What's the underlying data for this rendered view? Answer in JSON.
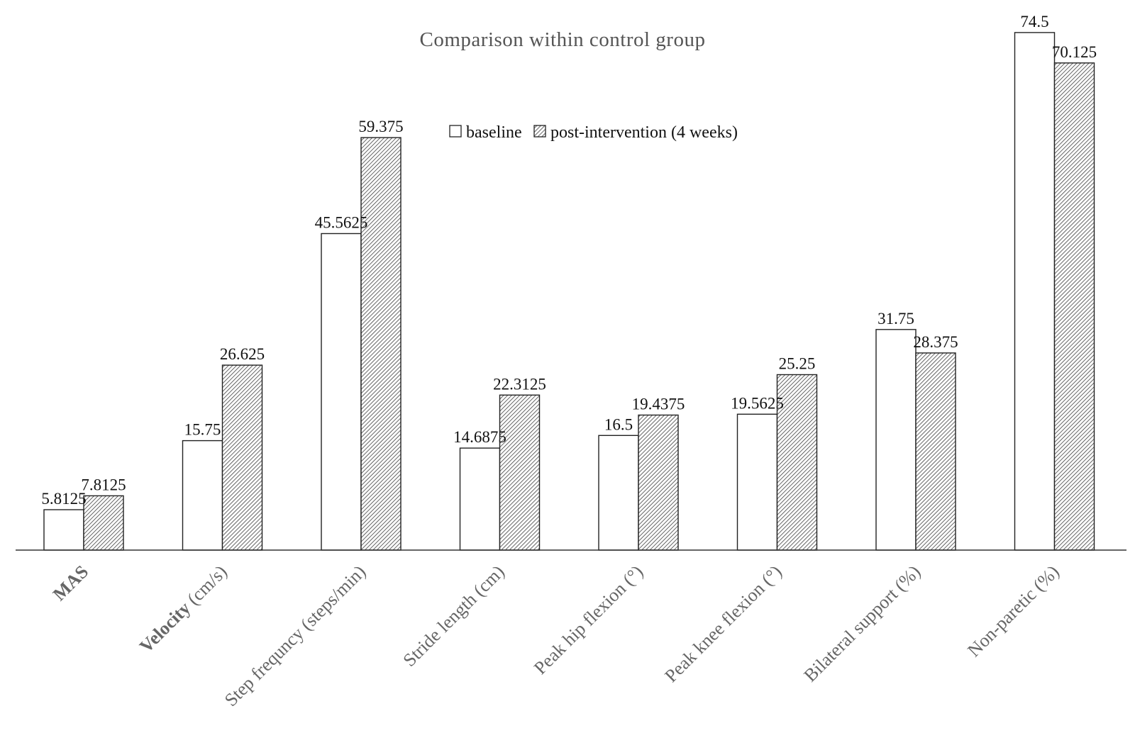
{
  "chart_data": {
    "type": "bar",
    "title": "Comparison within  control group",
    "xlabel": "",
    "ylabel": "",
    "ylim": [
      0,
      76
    ],
    "grid": false,
    "legend_position": "top-center",
    "categories": [
      "MAS",
      "Velocity (cm/s)",
      "Step frequncy (steps/min)",
      "Stride length (cm)",
      "Peak hip flexion (°)",
      "Peak knee flexion (°)",
      "Bilateral support (%)",
      "Non-paretic (%)"
    ],
    "category_label_parts": [
      {
        "bold": "MAS",
        "rest": ""
      },
      {
        "bold": "Velocity",
        "rest": " (cm/s)"
      },
      {
        "bold": "",
        "rest": "Step frequncy (steps/min)"
      },
      {
        "bold": "",
        "rest": "Stride length (cm)"
      },
      {
        "bold": "",
        "rest": "Peak hip flexion (°)"
      },
      {
        "bold": "",
        "rest": "Peak knee flexion (°)"
      },
      {
        "bold": "",
        "rest": "Bilateral support (%)"
      },
      {
        "bold": "",
        "rest": "Non-paretic (%)"
      }
    ],
    "series": [
      {
        "name": "baseline",
        "fill": "white",
        "values": [
          5.8125,
          15.75,
          45.5625,
          14.6875,
          16.5,
          19.5625,
          31.75,
          74.5
        ],
        "labels": [
          "5.8125",
          "15.75",
          "45.5625",
          "14.6875",
          "16.5",
          "19.5625",
          "31.75",
          "74.5"
        ]
      },
      {
        "name": "post-intervention (4 weeks)",
        "fill": "hatched",
        "values": [
          7.8125,
          26.625,
          59.375,
          22.3125,
          19.4375,
          25.25,
          28.375,
          70.125
        ],
        "labels": [
          "7.8125",
          "26.625",
          "59.375",
          "22.3125",
          "19.4375",
          "25.25",
          "28.375",
          "70.125"
        ]
      }
    ],
    "colors": {
      "bar_stroke": "#222222",
      "hatch": "#333333",
      "title": "#555555",
      "tick_label": "#666666",
      "axis": "#333333"
    }
  }
}
